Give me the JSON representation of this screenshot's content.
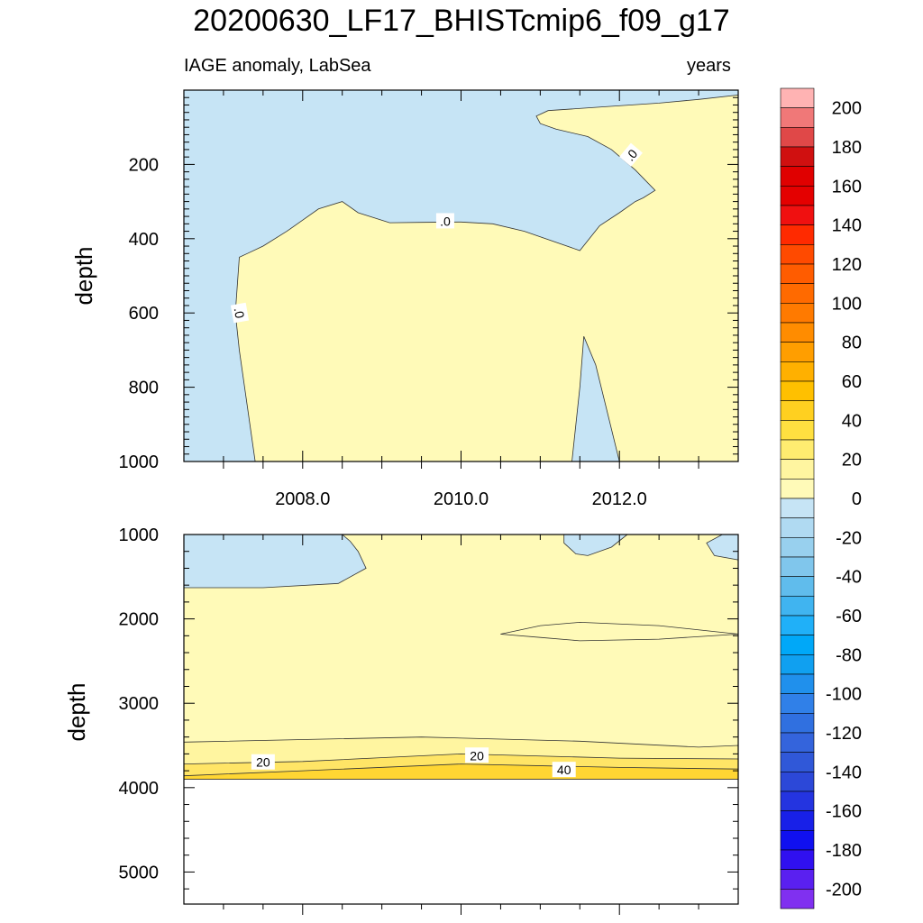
{
  "title": "20200630_LF17_BHISTcmip6_f09_g17",
  "left_subtitle": "IAGE anomaly, LabSea",
  "right_subtitle": "years",
  "chart_data": [
    {
      "type": "contour",
      "panel": "upper",
      "ylabel": "depth",
      "xlabel": "",
      "xlim": [
        2006.5,
        2013.5
      ],
      "ylim": [
        1000,
        0
      ],
      "x_ticks": [
        2008,
        2010,
        2012
      ],
      "x_tick_labels": [
        "2008.0",
        "2010.0",
        "2012.0"
      ],
      "y_ticks": [
        200,
        400,
        600,
        800,
        1000
      ],
      "y_tick_labels": [
        "200",
        "400",
        "600",
        "800",
        "1000"
      ],
      "contour_labels": [
        ".0",
        ".0",
        ".0"
      ],
      "regions": [
        {
          "level": "0 to -10",
          "color": "#c6e4f5",
          "points": [
            [
              2006.5,
              0
            ],
            [
              2013.5,
              0
            ],
            [
              2013.5,
              13
            ],
            [
              2013.0,
              25
            ],
            [
              2012.5,
              35
            ],
            [
              2011.8,
              45
            ],
            [
              2011.1,
              55
            ],
            [
              2010.95,
              70
            ],
            [
              2011.0,
              90
            ],
            [
              2011.2,
              105
            ],
            [
              2011.6,
              125
            ],
            [
              2011.9,
              160
            ],
            [
              2012.2,
              215
            ],
            [
              2012.45,
              270
            ],
            [
              2012.3,
              290
            ],
            [
              2012.2,
              300
            ],
            [
              2012.0,
              330
            ],
            [
              2011.75,
              365
            ],
            [
              2011.5,
              432
            ],
            [
              2010.8,
              380
            ],
            [
              2010.4,
              360
            ],
            [
              2010.0,
              355
            ],
            [
              2009.5,
              356
            ],
            [
              2009.1,
              357
            ],
            [
              2008.7,
              330
            ],
            [
              2008.5,
              300
            ],
            [
              2008.2,
              320
            ],
            [
              2008.0,
              350
            ],
            [
              2007.8,
              380
            ],
            [
              2007.5,
              420
            ],
            [
              2007.3,
              440
            ],
            [
              2007.2,
              450
            ],
            [
              2007.15,
              600
            ],
            [
              2007.2,
              700
            ],
            [
              2007.3,
              850
            ],
            [
              2007.4,
              1000
            ],
            [
              2006.5,
              1000
            ]
          ]
        },
        {
          "level": "0 to -10",
          "color": "#c6e4f5",
          "points": [
            [
              2011.4,
              1000
            ],
            [
              2011.5,
              800
            ],
            [
              2011.55,
              663
            ],
            [
              2011.7,
              740
            ],
            [
              2012.0,
              1000
            ]
          ]
        }
      ]
    },
    {
      "type": "contour",
      "panel": "lower",
      "ylabel": "depth",
      "xlabel": "",
      "xlim": [
        2006.5,
        2013.5
      ],
      "ylim": [
        5380,
        1000
      ],
      "y_ticks": [
        1000,
        2000,
        3000,
        4000,
        5000
      ],
      "y_tick_labels": [
        "1000",
        "2000",
        "3000",
        "4000",
        "5000"
      ],
      "bottom_depth": 3900,
      "contour_labels": [
        "20",
        "20",
        "40"
      ],
      "regions": [
        {
          "level": "0 to -10",
          "color": "#c6e4f5",
          "points": [
            [
              2006.5,
              1000
            ],
            [
              2008.5,
              1000
            ],
            [
              2008.6,
              1080
            ],
            [
              2008.7,
              1200
            ],
            [
              2008.8,
              1400
            ],
            [
              2008.45,
              1580
            ],
            [
              2007.5,
              1630
            ],
            [
              2006.5,
              1630
            ]
          ]
        },
        {
          "level": "0 to -10",
          "color": "#c6e4f5",
          "points": [
            [
              2011.3,
              1000
            ],
            [
              2012.1,
              1000
            ],
            [
              2011.9,
              1150
            ],
            [
              2011.6,
              1250
            ],
            [
              2011.45,
              1230
            ],
            [
              2011.3,
              1100
            ]
          ]
        },
        {
          "level": "0 to -10",
          "color": "#c6e4f5",
          "points": [
            [
              2013.5,
              1000
            ],
            [
              2013.3,
              1000
            ],
            [
              2013.1,
              1100
            ],
            [
              2013.2,
              1250
            ],
            [
              2013.5,
              1300
            ]
          ]
        },
        {
          "level": "10 to 20",
          "color": "#fff5a0",
          "points": [
            [
              2006.5,
              3460
            ],
            [
              2008.0,
              3430
            ],
            [
              2009.5,
              3400
            ],
            [
              2011.5,
              3450
            ],
            [
              2013.0,
              3520
            ],
            [
              2013.5,
              3500
            ],
            [
              2013.5,
              3900
            ],
            [
              2006.5,
              3900
            ]
          ]
        },
        {
          "level": "20 to 30",
          "color": "#ffe566",
          "points": [
            [
              2006.5,
              3720
            ],
            [
              2008.0,
              3690
            ],
            [
              2010.0,
              3600
            ],
            [
              2012.0,
              3650
            ],
            [
              2013.5,
              3660
            ],
            [
              2013.5,
              3900
            ],
            [
              2006.5,
              3900
            ]
          ]
        },
        {
          "level": "30 to 40",
          "color": "#ffd633",
          "points": [
            [
              2006.5,
              3860
            ],
            [
              2008.0,
              3800
            ],
            [
              2010.0,
              3720
            ],
            [
              2012.0,
              3760
            ],
            [
              2013.5,
              3780
            ],
            [
              2013.5,
              3900
            ],
            [
              2006.5,
              3900
            ]
          ]
        }
      ],
      "contour_lines": [
        [
          [
            2010.5,
            2180
          ],
          [
            2011.0,
            2080
          ],
          [
            2011.5,
            2040
          ],
          [
            2012.5,
            2080
          ],
          [
            2013.5,
            2180
          ]
        ],
        [
          [
            2010.5,
            2180
          ],
          [
            2011.0,
            2220
          ],
          [
            2011.5,
            2260
          ],
          [
            2012.5,
            2240
          ],
          [
            2013.5,
            2180
          ]
        ]
      ]
    },
    {
      "type": "colorbar",
      "levels": [
        200,
        190,
        180,
        170,
        160,
        150,
        140,
        130,
        120,
        110,
        100,
        90,
        80,
        70,
        60,
        50,
        40,
        30,
        20,
        10,
        0,
        -10,
        -20,
        -30,
        -40,
        -50,
        -60,
        -70,
        -80,
        -90,
        -100,
        -110,
        -120,
        -130,
        -140,
        -150,
        -160,
        -170,
        -180,
        -190,
        -200
      ],
      "colors": [
        "#ffb3b3",
        "#f07878",
        "#e04848",
        "#d01010",
        "#e00000",
        "#e40000",
        "#f01010",
        "#ff2a00",
        "#ff4a00",
        "#ff5c00",
        "#ff6a00",
        "#ff7a00",
        "#ff8c00",
        "#ff9e00",
        "#ffb000",
        "#ffc000",
        "#ffd020",
        "#ffe040",
        "#ffec70",
        "#fff5a0",
        "#fffab8",
        "#c6e4f5",
        "#b0daf2",
        "#98d0ee",
        "#80c6ec",
        "#60bcec",
        "#40b4f0",
        "#20b0f8",
        "#00a8f8",
        "#10a0f0",
        "#2090ec",
        "#3080e8",
        "#3070e0",
        "#3464dc",
        "#3058d8",
        "#2c48d8",
        "#2434e0",
        "#1820e8",
        "#1010f0",
        "#3010f0",
        "#5a20f0",
        "#8030f0"
      ],
      "tick_labels": [
        "200",
        "180",
        "160",
        "140",
        "120",
        "100",
        "80",
        "60",
        "40",
        "20",
        "0",
        "-20",
        "-40",
        "-60",
        "-80",
        "-100",
        "-120",
        "-140",
        "-160",
        "-180",
        "-200"
      ]
    }
  ]
}
